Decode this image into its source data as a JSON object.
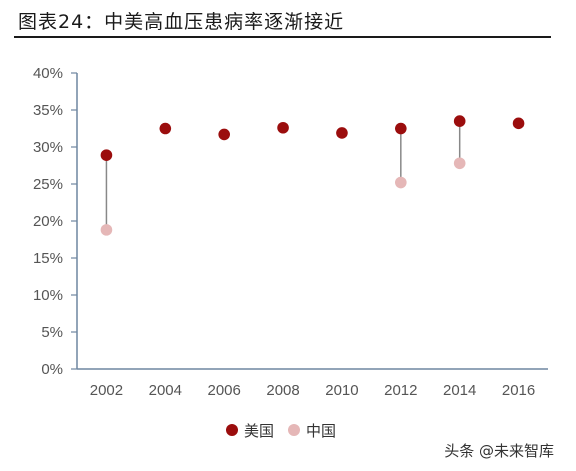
{
  "title": "图表24：中美高血压患病率逐渐接近",
  "watermark": "头条 @未来智库",
  "colors": {
    "us": "#9b0d0d",
    "china": "#e5b7b7",
    "connector": "#888888",
    "axis": "#6e86a0"
  },
  "chart_data": {
    "type": "scatter",
    "x": [
      "2002",
      "2004",
      "2006",
      "2008",
      "2010",
      "2012",
      "2014",
      "2016"
    ],
    "ylim": [
      0,
      40
    ],
    "yticks": [
      "0%",
      "5%",
      "10%",
      "15%",
      "20%",
      "25%",
      "30%",
      "35%",
      "40%"
    ],
    "grid": false,
    "legend_position": "bottom",
    "series": [
      {
        "name": "美国",
        "values": [
          28.9,
          32.5,
          31.7,
          32.6,
          31.9,
          32.5,
          33.5,
          33.2
        ]
      },
      {
        "name": "中国",
        "values": [
          18.8,
          null,
          null,
          null,
          null,
          25.2,
          27.8,
          null
        ]
      }
    ]
  }
}
